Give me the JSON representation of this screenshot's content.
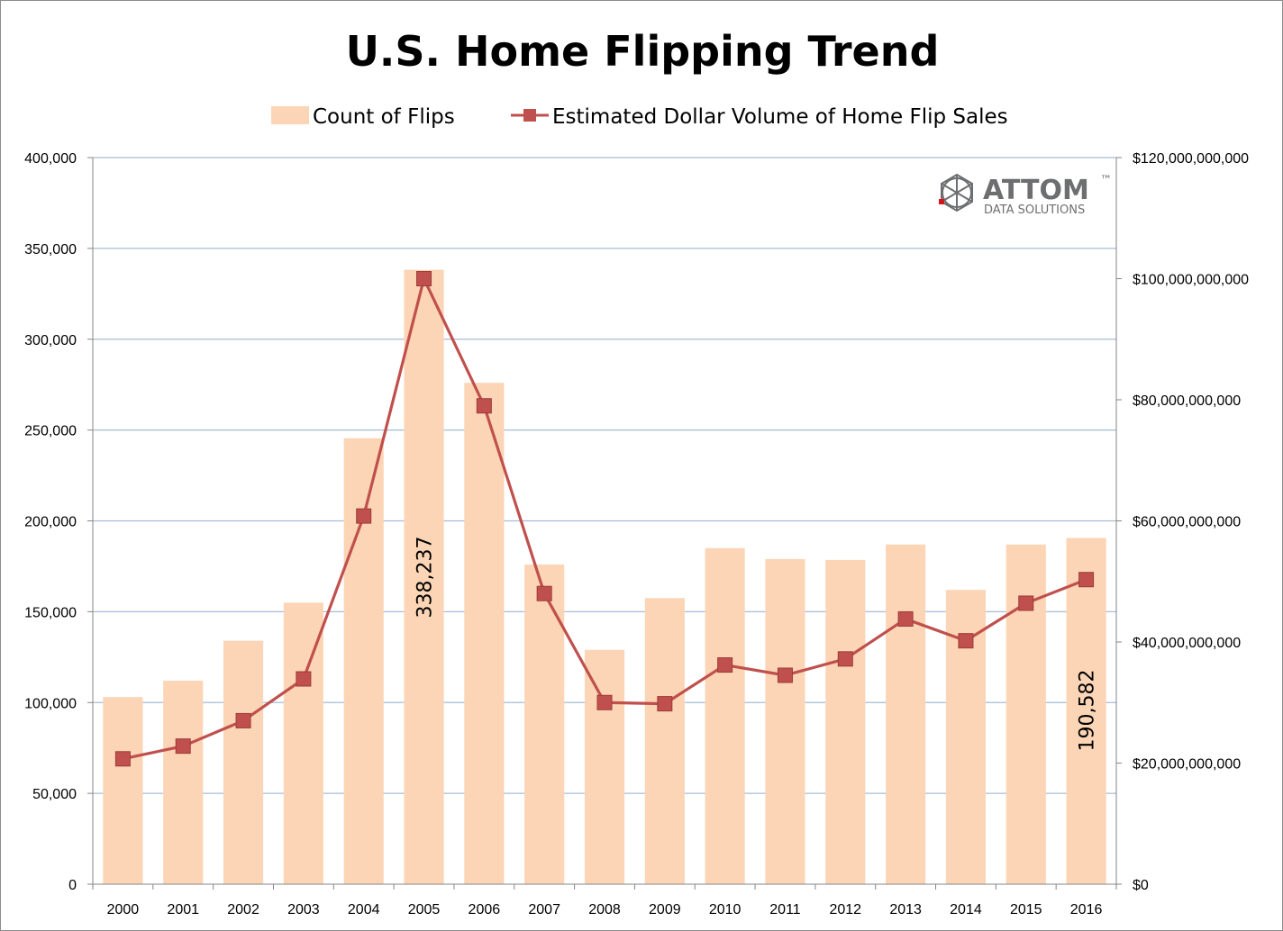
{
  "chart_data": {
    "type": "bar",
    "title": "U.S. Home Flipping Trend",
    "categories": [
      "2000",
      "2001",
      "2002",
      "2003",
      "2004",
      "2005",
      "2006",
      "2007",
      "2008",
      "2009",
      "2010",
      "2011",
      "2012",
      "2013",
      "2014",
      "2015",
      "2016"
    ],
    "series": [
      {
        "name": "Count of Flips",
        "type": "bar",
        "axis": "left",
        "color": "#fbd5b5",
        "values": [
          103000,
          112000,
          134000,
          155000,
          245500,
          338237,
          276000,
          176000,
          129000,
          157500,
          185000,
          179000,
          178500,
          187000,
          162000,
          187000,
          190582
        ]
      },
      {
        "name": "Estimated Dollar Volume of Home Flip Sales",
        "type": "line",
        "axis": "right",
        "color": "#c0504d",
        "marker": "square",
        "values": [
          20700000000,
          22800000000,
          27000000000,
          33900000000,
          60800000000,
          100000000000,
          79000000000,
          48000000000,
          30000000000,
          29800000000,
          36200000000,
          34500000000,
          37200000000,
          43800000000,
          40200000000,
          46400000000,
          50300000000
        ]
      }
    ],
    "y_left": {
      "ylim": [
        0,
        400000
      ],
      "ticks": [
        0,
        50000,
        100000,
        150000,
        200000,
        250000,
        300000,
        350000,
        400000
      ],
      "tick_labels": [
        "0",
        "50,000",
        "100,000",
        "150,000",
        "200,000",
        "250,000",
        "300,000",
        "350,000",
        "400,000"
      ]
    },
    "y_right": {
      "ylim": [
        0,
        120000000000
      ],
      "ticks": [
        0,
        20000000000,
        40000000000,
        60000000000,
        80000000000,
        100000000000,
        120000000000
      ],
      "tick_labels": [
        "$0",
        "$20,000,000,000",
        "$40,000,000,000",
        "$60,000,000,000",
        "$80,000,000,000",
        "$100,000,000,000",
        "$120,000,000,000"
      ]
    },
    "data_labels": [
      {
        "category": "2005",
        "text": "338,237"
      },
      {
        "category": "2016",
        "text": "190,582"
      }
    ],
    "grid": true,
    "legend": "top-center",
    "logo": {
      "main": "ATTOM",
      "tm": "™",
      "sub": "DATA SOLUTIONS"
    }
  }
}
